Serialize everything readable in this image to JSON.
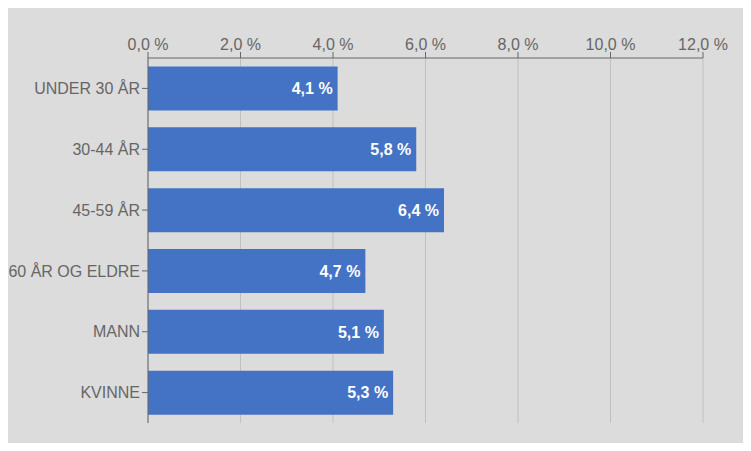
{
  "chart_data": {
    "type": "bar",
    "orientation": "horizontal",
    "categories": [
      "UNDER 30 ÅR",
      "30-44 ÅR",
      "45-59 ÅR",
      "60 ÅR OG ELDRE",
      "MANN",
      "KVINNE"
    ],
    "values": [
      4.1,
      5.8,
      6.4,
      4.7,
      5.1,
      5.3
    ],
    "value_labels": [
      "4,1 %",
      "5,8 %",
      "6,4 %",
      "4,7 %",
      "5,1 %",
      "5,3 %"
    ],
    "color": "#4472C4",
    "xlim": [
      0,
      12.0
    ],
    "xticks": [
      {
        "value": 0.0,
        "label": "0,0 %"
      },
      {
        "value": 2.0,
        "label": "2,0 %"
      },
      {
        "value": 4.0,
        "label": "4,0 %"
      },
      {
        "value": 6.0,
        "label": "6,0 %"
      },
      {
        "value": 8.0,
        "label": "8,0 %"
      },
      {
        "value": 10.0,
        "label": "10,0 %"
      },
      {
        "value": 12.0,
        "label": "12,0 %"
      }
    ],
    "grid": true,
    "data_labels": true
  }
}
